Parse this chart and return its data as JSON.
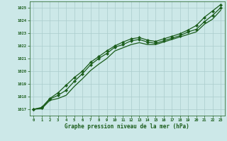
{
  "title": "Graphe pression niveau de la mer (hPa)",
  "xlabel_ticks": [
    0,
    1,
    2,
    3,
    4,
    5,
    6,
    7,
    8,
    9,
    10,
    11,
    12,
    13,
    14,
    15,
    16,
    17,
    18,
    19,
    20,
    21,
    22,
    23
  ],
  "ylim": [
    1016.5,
    1025.5
  ],
  "yticks": [
    1017,
    1018,
    1019,
    1020,
    1021,
    1022,
    1023,
    1024,
    1025
  ],
  "bg_color": "#cce8e8",
  "grid_color": "#aacccc",
  "line_color": "#1a5c1a",
  "marker_color": "#1a5c1a",
  "series1": [
    1017.0,
    1017.1,
    1017.8,
    1018.1,
    1018.5,
    1019.2,
    1019.8,
    1020.5,
    1021.0,
    1021.4,
    1021.9,
    1022.1,
    1022.4,
    1022.5,
    1022.3,
    1022.2,
    1022.4,
    1022.6,
    1022.8,
    1023.1,
    1023.3,
    1023.9,
    1024.4,
    1025.0
  ],
  "series2": [
    1017.0,
    1017.15,
    1017.85,
    1018.3,
    1018.9,
    1019.5,
    1020.0,
    1020.7,
    1021.15,
    1021.6,
    1022.0,
    1022.3,
    1022.55,
    1022.65,
    1022.45,
    1022.35,
    1022.55,
    1022.75,
    1022.95,
    1023.25,
    1023.6,
    1024.25,
    1024.75,
    1025.25
  ],
  "series3": [
    1017.0,
    1017.05,
    1017.7,
    1017.85,
    1018.1,
    1018.8,
    1019.4,
    1020.05,
    1020.55,
    1021.0,
    1021.6,
    1021.85,
    1022.1,
    1022.25,
    1022.1,
    1022.1,
    1022.3,
    1022.5,
    1022.7,
    1022.9,
    1023.1,
    1023.7,
    1024.1,
    1024.8
  ]
}
